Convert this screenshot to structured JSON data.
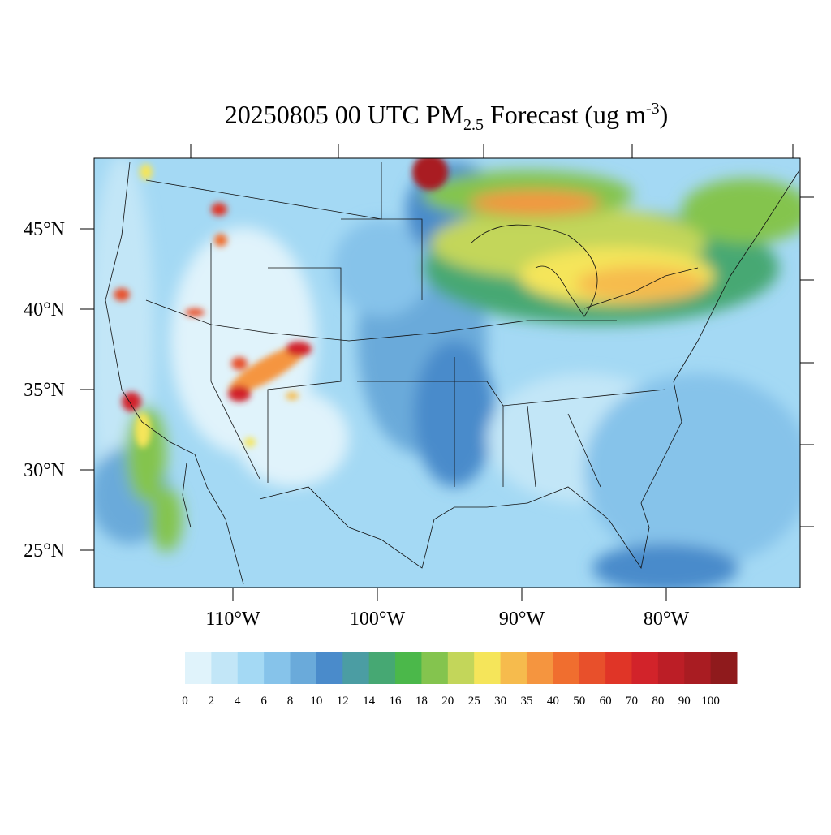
{
  "title": {
    "prefix": "20250805 00 UTC PM",
    "subscript": "2.5",
    "middle": " Forecast (ug m",
    "superscript": "-3",
    "suffix": ")"
  },
  "latitude_labels": [
    "45°N",
    "40°N",
    "35°N",
    "30°N",
    "25°N"
  ],
  "longitude_labels": [
    "110°W",
    "100°W",
    "90°W",
    "80°W"
  ],
  "colorbar": {
    "labels": [
      0,
      2,
      4,
      6,
      8,
      10,
      12,
      14,
      16,
      18,
      20,
      25,
      30,
      35,
      40,
      50,
      60,
      70,
      80,
      90,
      100
    ],
    "colors": [
      "#e0f3fb",
      "#c2e6f7",
      "#a4d9f4",
      "#86c3ea",
      "#6aaada",
      "#4a8bcb",
      "#4b9da3",
      "#46a873",
      "#4bb84a",
      "#84c44e",
      "#c3d65a",
      "#f5e55a",
      "#f6bb4d",
      "#f5953f",
      "#f06e2f",
      "#e8502b",
      "#e03527",
      "#d2232a",
      "#bc1e26",
      "#a91c22",
      "#8f1a1c"
    ]
  }
}
